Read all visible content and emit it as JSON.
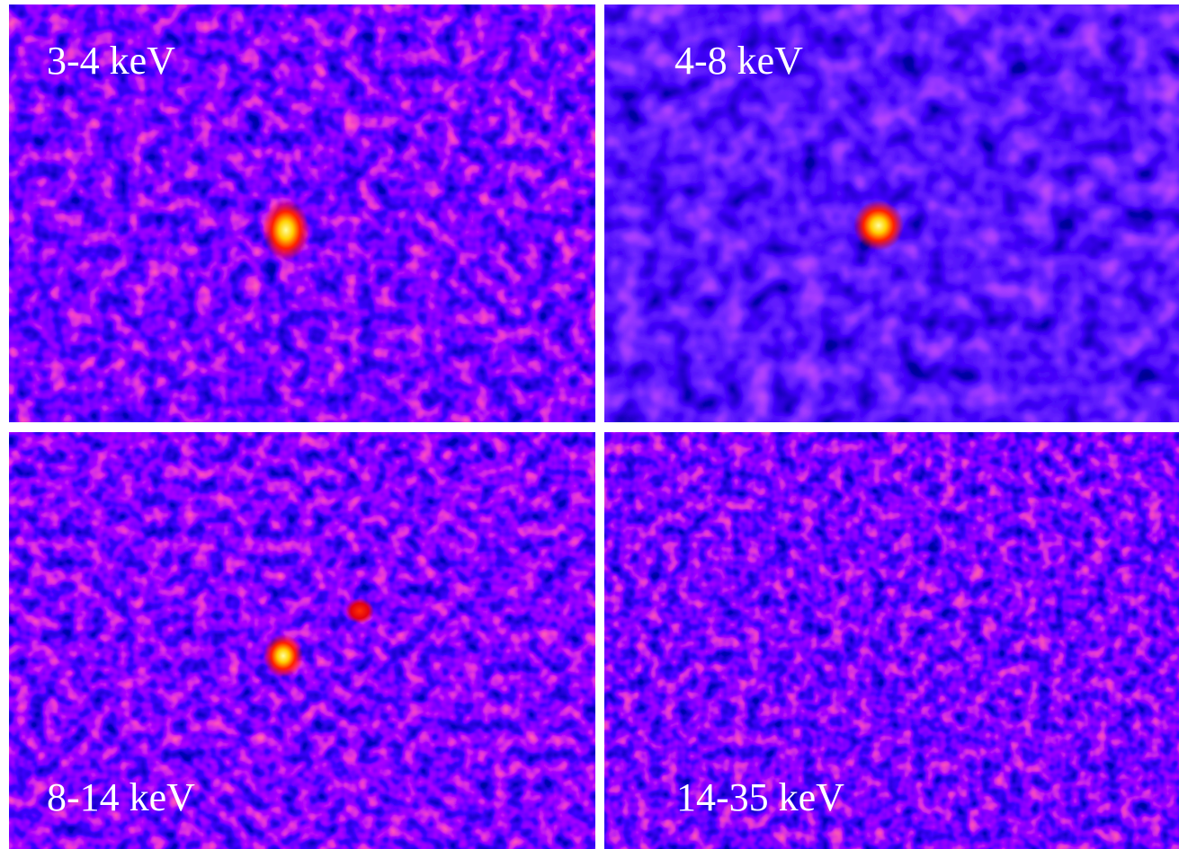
{
  "panels": [
    {
      "label": "3-4 keV"
    },
    {
      "label": "4-8 keV"
    },
    {
      "label": "8-14 keV"
    },
    {
      "label": "14-35 keV"
    }
  ]
}
